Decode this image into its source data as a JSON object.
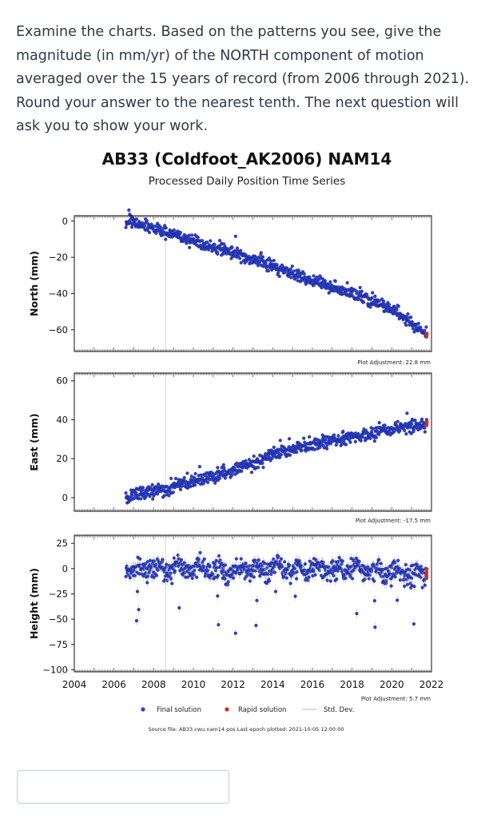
{
  "question": {
    "text": "Examine the charts. Based on the patterns you see, give the magnitude (in mm/yr) of the NORTH component of motion averaged over the 15 years of record (from 2006 through 2021). Round your answer to the nearest tenth. The next question will ask you to show your work."
  },
  "answer": {
    "value": ""
  },
  "chart_data": {
    "type": "scatter",
    "title": "AB33 (Coldfoot_AK2006) NAM14",
    "subtitle": "Processed Daily Position Time Series",
    "x": [
      2006.6,
      2008.0,
      2010.0,
      2012.0,
      2014.0,
      2016.0,
      2018.0,
      2020.0,
      2021.76
    ],
    "xlim": [
      2004,
      2022
    ],
    "xticks": [
      "2004",
      "2006",
      "2008",
      "2010",
      "2012",
      "2014",
      "2016",
      "2018",
      "2020",
      "2022"
    ],
    "series": [
      {
        "name": "North",
        "ylabel": "North (mm)",
        "ylim": [
          -72,
          3
        ],
        "yticks": [
          "0",
          "-20",
          "-40",
          "-60"
        ],
        "values": [
          0,
          -4,
          -11,
          -17,
          -25,
          -33,
          -40,
          -48,
          -63
        ],
        "adjustment": "Plot Adjustment: 22.8 mm"
      },
      {
        "name": "East",
        "ylabel": "East (mm)",
        "ylim": [
          -7,
          64
        ],
        "yticks": [
          "60",
          "40",
          "20",
          "0"
        ],
        "values": [
          0,
          3,
          8,
          14,
          22,
          27,
          31,
          35,
          38
        ],
        "adjustment": "Plot Adjustment: -17.5 mm"
      },
      {
        "name": "Height",
        "ylabel": "Height (mm)",
        "ylim": [
          -102,
          33
        ],
        "yticks": [
          "25",
          "0",
          "-25",
          "-50",
          "-75",
          "-100"
        ],
        "values": [
          2,
          0,
          1,
          -3,
          0,
          -2,
          0,
          -3,
          -5
        ],
        "adjustment": "Plot Adjustment: 5.7 mm"
      }
    ],
    "legend": {
      "final": "Final solution",
      "rapid": "Rapid solution",
      "std": "Std. Dev."
    },
    "source": "Source file: AB33.cwu.nam14.pos  Last epoch plotted: 2021-10-05 12:00:00",
    "colors": {
      "final": "#2b3fd6",
      "rapid": "#d62a22",
      "std": "#b5b5b5",
      "axis": "#111111"
    }
  }
}
